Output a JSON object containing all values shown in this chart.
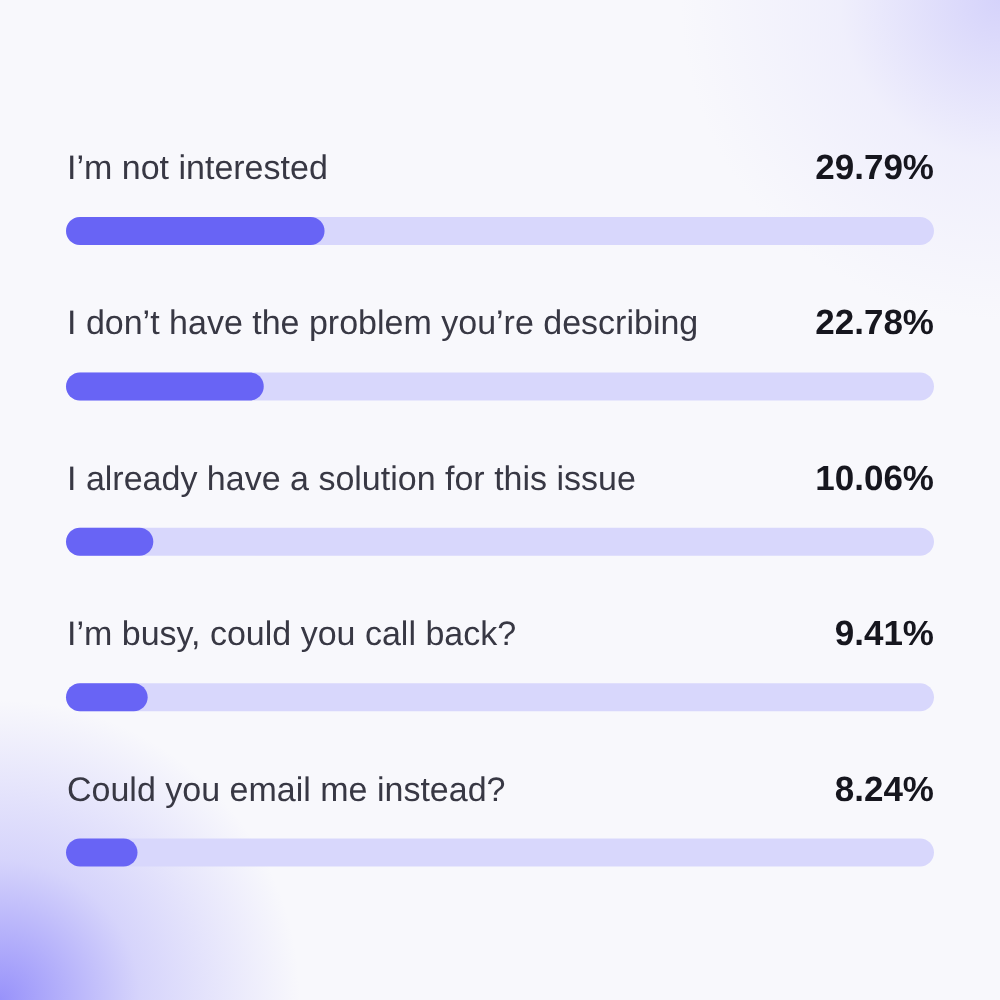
{
  "chart_data": {
    "type": "bar",
    "orientation": "horizontal",
    "categories": [
      "I’m not interested",
      "I don’t have the problem you’re describing",
      "I already have a solution for this issue",
      "I’m busy, could you call back?",
      "Could you email me instead?"
    ],
    "values": [
      29.79,
      22.78,
      10.06,
      9.41,
      8.24
    ],
    "value_labels": [
      "29.79%",
      "22.78%",
      "10.06%",
      "9.41%",
      "8.24%"
    ],
    "color": "#6864f5",
    "xlim": [
      0,
      100
    ],
    "tick_labels": "y"
  }
}
